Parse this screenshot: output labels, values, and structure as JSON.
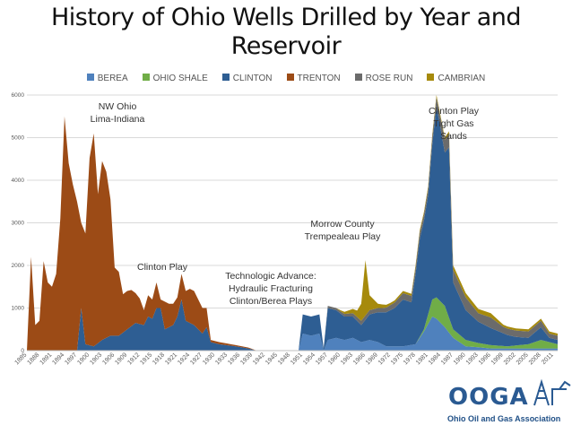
{
  "chart_data": {
    "type": "area",
    "stacked": true,
    "title": "History of Ohio Wells Drilled by Year and Reservoir",
    "title_lines": [
      "History of Ohio Wells Drilled by Year and",
      "Reservoir"
    ],
    "xlabel": "",
    "ylabel": "",
    "ylim": [
      0,
      6000
    ],
    "yticks": [
      0,
      1000,
      2000,
      3000,
      4000,
      5000,
      6000
    ],
    "xlim": [
      1885,
      2012
    ],
    "xticks": [
      1885,
      1888,
      1891,
      1894,
      1897,
      1900,
      1903,
      1906,
      1909,
      1912,
      1915,
      1918,
      1921,
      1924,
      1927,
      1930,
      1933,
      1936,
      1939,
      1942,
      1945,
      1948,
      1951,
      1954,
      1957,
      1960,
      1963,
      1966,
      1969,
      1972,
      1975,
      1978,
      1981,
      1984,
      1987,
      1990,
      1993,
      1996,
      1999,
      2002,
      2005,
      2008,
      2011
    ],
    "grid": true,
    "legend_position": "top",
    "series": [
      {
        "name": "BEREA",
        "color": "#4f81bd",
        "points": [
          [
            1885,
            0
          ],
          [
            1950,
            0
          ],
          [
            1951,
            400
          ],
          [
            1953,
            350
          ],
          [
            1955,
            400
          ],
          [
            1956,
            0
          ],
          [
            1957,
            250
          ],
          [
            1959,
            300
          ],
          [
            1961,
            250
          ],
          [
            1963,
            300
          ],
          [
            1965,
            200
          ],
          [
            1967,
            250
          ],
          [
            1969,
            200
          ],
          [
            1971,
            100
          ],
          [
            1975,
            100
          ],
          [
            1978,
            150
          ],
          [
            1980,
            450
          ],
          [
            1982,
            800
          ],
          [
            1983,
            750
          ],
          [
            1985,
            550
          ],
          [
            1987,
            300
          ],
          [
            1990,
            100
          ],
          [
            1993,
            80
          ],
          [
            1996,
            50
          ],
          [
            2000,
            50
          ],
          [
            2005,
            50
          ],
          [
            2010,
            50
          ],
          [
            2012,
            50
          ]
        ]
      },
      {
        "name": "OHIO SHALE",
        "color": "#70ad47",
        "points": [
          [
            1885,
            0
          ],
          [
            1978,
            0
          ],
          [
            1980,
            50
          ],
          [
            1982,
            400
          ],
          [
            1983,
            500
          ],
          [
            1985,
            500
          ],
          [
            1987,
            200
          ],
          [
            1990,
            150
          ],
          [
            1993,
            100
          ],
          [
            1996,
            80
          ],
          [
            2000,
            50
          ],
          [
            2005,
            100
          ],
          [
            2008,
            200
          ],
          [
            2010,
            150
          ],
          [
            2012,
            100
          ]
        ]
      },
      {
        "name": "CLINTON",
        "color": "#2e5e93",
        "points": [
          [
            1885,
            0
          ],
          [
            1897,
            0
          ],
          [
            1898,
            1000
          ],
          [
            1899,
            150
          ],
          [
            1901,
            100
          ],
          [
            1903,
            250
          ],
          [
            1905,
            350
          ],
          [
            1907,
            350
          ],
          [
            1909,
            500
          ],
          [
            1911,
            650
          ],
          [
            1913,
            600
          ],
          [
            1914,
            800
          ],
          [
            1915,
            750
          ],
          [
            1916,
            1000
          ],
          [
            1917,
            1000
          ],
          [
            1918,
            500
          ],
          [
            1920,
            600
          ],
          [
            1921,
            800
          ],
          [
            1922,
            1200
          ],
          [
            1923,
            700
          ],
          [
            1925,
            600
          ],
          [
            1927,
            400
          ],
          [
            1928,
            550
          ],
          [
            1929,
            200
          ],
          [
            1931,
            150
          ],
          [
            1935,
            100
          ],
          [
            1938,
            50
          ],
          [
            1940,
            0
          ],
          [
            1950,
            0
          ],
          [
            1951,
            450
          ],
          [
            1953,
            450
          ],
          [
            1955,
            450
          ],
          [
            1956,
            50
          ],
          [
            1957,
            750
          ],
          [
            1959,
            650
          ],
          [
            1961,
            550
          ],
          [
            1963,
            500
          ],
          [
            1965,
            400
          ],
          [
            1967,
            600
          ],
          [
            1969,
            700
          ],
          [
            1971,
            800
          ],
          [
            1973,
            900
          ],
          [
            1975,
            1100
          ],
          [
            1977,
            1000
          ],
          [
            1979,
            2300
          ],
          [
            1981,
            2800
          ],
          [
            1983,
            4500
          ],
          [
            1985,
            3600
          ],
          [
            1986,
            4000
          ],
          [
            1987,
            1100
          ],
          [
            1990,
            700
          ],
          [
            1993,
            500
          ],
          [
            1996,
            400
          ],
          [
            1999,
            300
          ],
          [
            2002,
            200
          ],
          [
            2005,
            150
          ],
          [
            2008,
            300
          ],
          [
            2010,
            100
          ],
          [
            2012,
            100
          ]
        ]
      },
      {
        "name": "TRENTON",
        "color": "#9c4b16",
        "points": [
          [
            1885,
            0
          ],
          [
            1886,
            2200
          ],
          [
            1887,
            600
          ],
          [
            1888,
            700
          ],
          [
            1889,
            2100
          ],
          [
            1890,
            1600
          ],
          [
            1891,
            1500
          ],
          [
            1892,
            1800
          ],
          [
            1893,
            3100
          ],
          [
            1894,
            5500
          ],
          [
            1895,
            4400
          ],
          [
            1896,
            3900
          ],
          [
            1897,
            3500
          ],
          [
            1898,
            2000
          ],
          [
            1899,
            2600
          ],
          [
            1900,
            4400
          ],
          [
            1901,
            5000
          ],
          [
            1902,
            3500
          ],
          [
            1903,
            4200
          ],
          [
            1904,
            3900
          ],
          [
            1905,
            3200
          ],
          [
            1906,
            1600
          ],
          [
            1907,
            1500
          ],
          [
            1908,
            900
          ],
          [
            1909,
            900
          ],
          [
            1910,
            850
          ],
          [
            1911,
            700
          ],
          [
            1912,
            600
          ],
          [
            1913,
            350
          ],
          [
            1914,
            500
          ],
          [
            1915,
            450
          ],
          [
            1916,
            600
          ],
          [
            1917,
            200
          ],
          [
            1918,
            650
          ],
          [
            1919,
            550
          ],
          [
            1920,
            500
          ],
          [
            1921,
            450
          ],
          [
            1922,
            600
          ],
          [
            1923,
            700
          ],
          [
            1924,
            800
          ],
          [
            1925,
            800
          ],
          [
            1926,
            700
          ],
          [
            1927,
            600
          ],
          [
            1928,
            450
          ],
          [
            1929,
            50
          ],
          [
            1931,
            50
          ],
          [
            1935,
            30
          ],
          [
            1938,
            20
          ],
          [
            1940,
            0
          ],
          [
            2012,
            0
          ]
        ]
      },
      {
        "name": "ROSE RUN",
        "color": "#6b6b6b",
        "points": [
          [
            1885,
            0
          ],
          [
            1956,
            0
          ],
          [
            1957,
            50
          ],
          [
            1960,
            50
          ],
          [
            1965,
            100
          ],
          [
            1970,
            100
          ],
          [
            1975,
            150
          ],
          [
            1978,
            150
          ],
          [
            1981,
            150
          ],
          [
            1983,
            200
          ],
          [
            1985,
            300
          ],
          [
            1987,
            300
          ],
          [
            1990,
            300
          ],
          [
            1993,
            200
          ],
          [
            1996,
            250
          ],
          [
            1999,
            150
          ],
          [
            2002,
            150
          ],
          [
            2005,
            150
          ],
          [
            2008,
            150
          ],
          [
            2010,
            100
          ],
          [
            2012,
            100
          ]
        ]
      },
      {
        "name": "CAMBRIAN",
        "color": "#a68a0c",
        "points": [
          [
            1885,
            0
          ],
          [
            1959,
            0
          ],
          [
            1961,
            50
          ],
          [
            1963,
            100
          ],
          [
            1964,
            150
          ],
          [
            1965,
            400
          ],
          [
            1966,
            1300
          ],
          [
            1967,
            350
          ],
          [
            1969,
            100
          ],
          [
            1972,
            50
          ],
          [
            1975,
            50
          ],
          [
            1980,
            50
          ],
          [
            1985,
            50
          ],
          [
            1987,
            100
          ],
          [
            1990,
            100
          ],
          [
            1993,
            100
          ],
          [
            1996,
            100
          ],
          [
            1999,
            50
          ],
          [
            2005,
            50
          ],
          [
            2012,
            50
          ]
        ]
      }
    ],
    "annotations": [
      {
        "lines": [
          "NW Ohio",
          "Lima-Indiana"
        ]
      },
      {
        "lines": [
          "Clinton Play"
        ]
      },
      {
        "lines": [
          "Technologic Advance:",
          "Hydraulic Fracturing",
          "Clinton/Berea Plays"
        ]
      },
      {
        "lines": [
          "Morrow County",
          "Trempealeau Play"
        ]
      },
      {
        "lines": [
          "Clinton Play",
          "Tight Gas",
          "Sands"
        ]
      }
    ]
  },
  "logo": {
    "name": "OOGA",
    "subtitle": "Ohio Oil and Gas Association",
    "color": "#2a5a92"
  }
}
